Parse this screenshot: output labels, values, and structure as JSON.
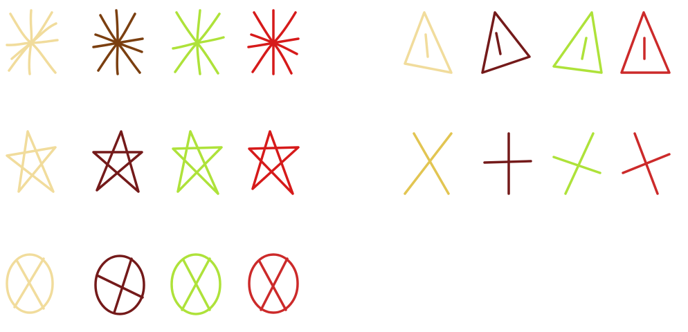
{
  "palette": {
    "tan": "#f1dc9c",
    "brown": "#7b3f10",
    "maroon": "#741a1a",
    "lime": "#aee23a",
    "red": "#d61a1a",
    "gold": "#e2c552",
    "crimson": "#cc2a2a"
  },
  "groups": [
    {
      "shape": "asterisk-star-icon",
      "items": [
        {
          "color": "tan"
        },
        {
          "color": "brown"
        },
        {
          "color": "lime"
        },
        {
          "color": "red"
        }
      ]
    },
    {
      "shape": "triangle-with-line-icon",
      "items": [
        {
          "color": "tan"
        },
        {
          "color": "maroon"
        },
        {
          "color": "lime"
        },
        {
          "color": "crimson"
        }
      ]
    },
    {
      "shape": "pentagram-icon",
      "items": [
        {
          "color": "tan"
        },
        {
          "color": "maroon"
        },
        {
          "color": "lime"
        },
        {
          "color": "red"
        }
      ]
    },
    {
      "shape": "cross-icon",
      "items": [
        {
          "color": "gold"
        },
        {
          "color": "maroon"
        },
        {
          "color": "lime"
        },
        {
          "color": "crimson"
        }
      ]
    },
    {
      "shape": "crossed-oval-icon",
      "items": [
        {
          "color": "tan"
        },
        {
          "color": "maroon"
        },
        {
          "color": "lime"
        },
        {
          "color": "crimson"
        }
      ]
    }
  ]
}
